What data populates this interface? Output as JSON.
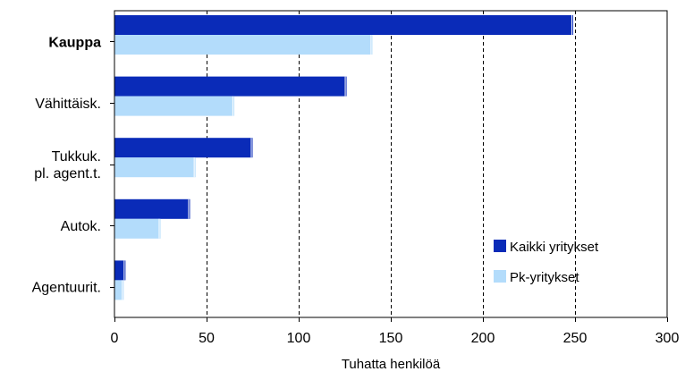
{
  "chart_data": {
    "type": "bar",
    "orientation": "horizontal",
    "categories": [
      [
        "Kauppa"
      ],
      [
        "Vähittäisk."
      ],
      [
        "Tukkuk.",
        "pl. agent.t."
      ],
      [
        "Autok."
      ],
      [
        "Agentuurit."
      ]
    ],
    "emphasized_category": 0,
    "series": [
      {
        "name": "Kaikki yritykset",
        "color": "#0a2bb8",
        "values": [
          249,
          126,
          75,
          41,
          6
        ]
      },
      {
        "name": "Pk-yritykset",
        "color": "#b3dcfb",
        "values": [
          140,
          65,
          44,
          25,
          5
        ]
      }
    ],
    "xlim": [
      0,
      300
    ],
    "xticks": [
      "0",
      "50",
      "100",
      "150",
      "200",
      "250",
      "300"
    ],
    "xlabel": "Tuhatta henkilöä",
    "grid": "vertical dashed",
    "legend_position": "bottom-right"
  }
}
